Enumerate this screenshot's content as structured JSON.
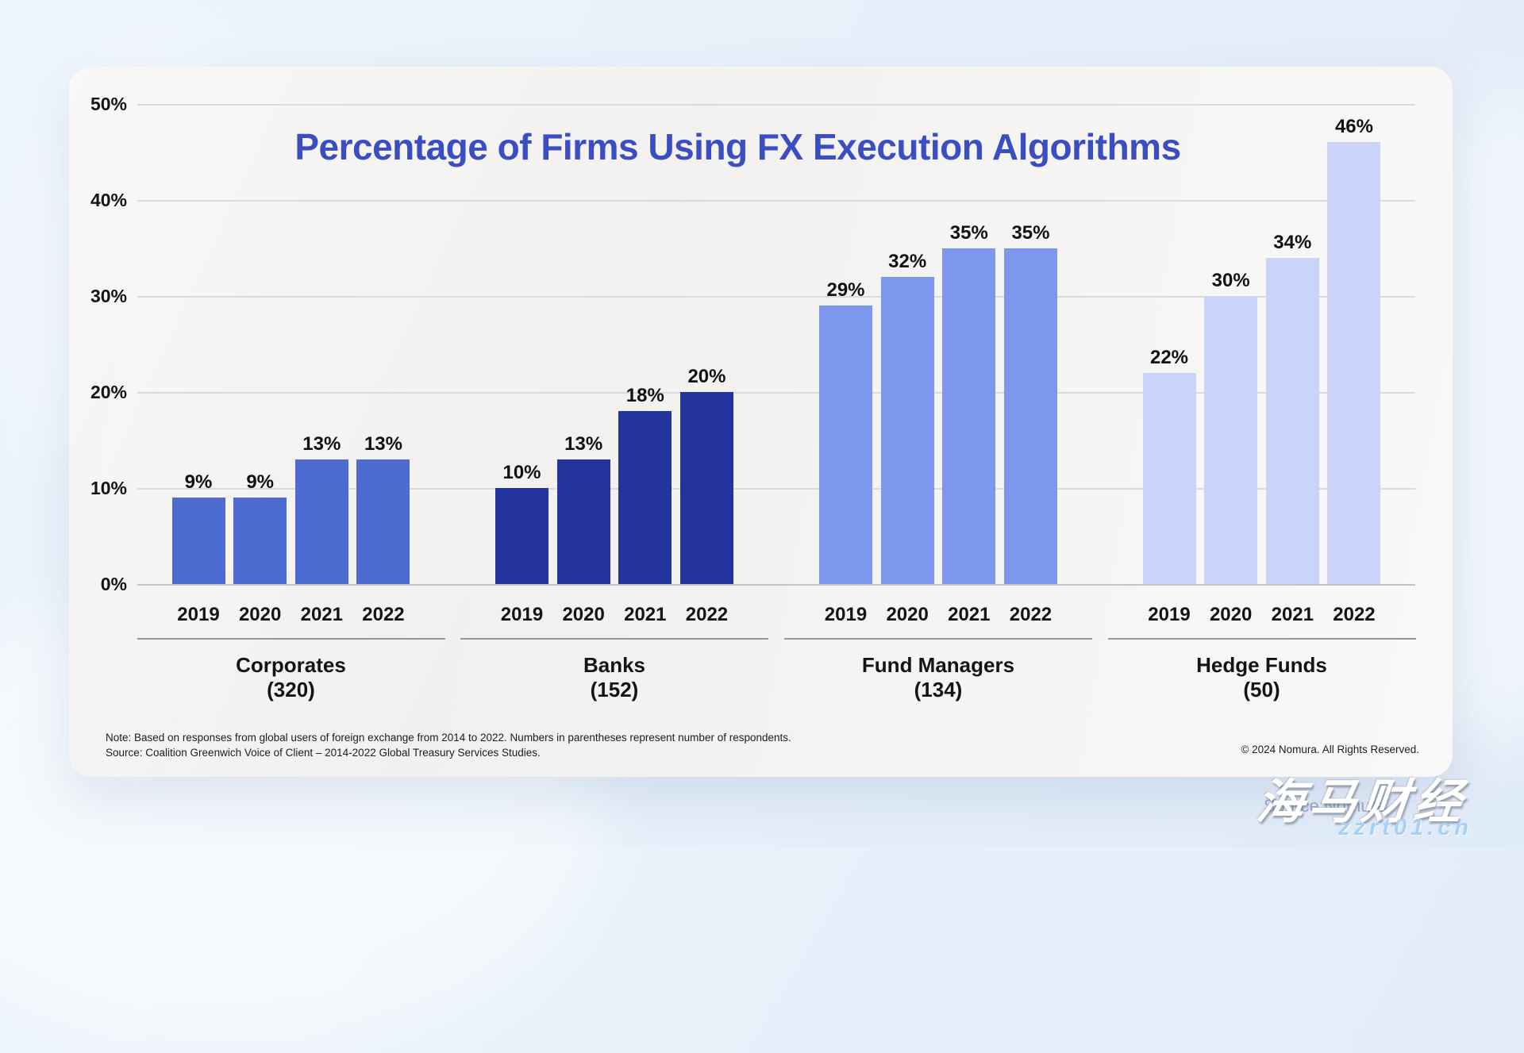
{
  "chart_data": {
    "type": "bar",
    "title": "Percentage of Firms Using FX Execution Algorithms",
    "title_color": "#3a4ec1",
    "ylim": [
      0,
      50
    ],
    "grid": true,
    "legend": "none",
    "y_axis": [
      {
        "label": "50%",
        "value": 50
      },
      {
        "label": "40%",
        "value": 40
      },
      {
        "label": "30%",
        "value": 30
      },
      {
        "label": "20%",
        "value": 20
      },
      {
        "label": "10%",
        "value": 10
      },
      {
        "label": "0%",
        "value": 0
      }
    ],
    "categories": [
      "2019",
      "2020",
      "2021",
      "2022"
    ],
    "groups": [
      {
        "name": "Corporates",
        "respondents_label": "(320)",
        "respondents": 320,
        "color": "#4e6bd2",
        "values": [
          9,
          9,
          13,
          13
        ],
        "labels": [
          "9%",
          "9%",
          "13%",
          "13%"
        ]
      },
      {
        "name": "Banks",
        "respondents_label": "(152)",
        "respondents": 152,
        "color": "#24349d",
        "values": [
          10,
          13,
          18,
          20
        ],
        "labels": [
          "10%",
          "13%",
          "18%",
          "20%"
        ]
      },
      {
        "name": "Fund Managers",
        "respondents_label": "(134)",
        "respondents": 134,
        "color": "#7e97ee",
        "values": [
          29,
          32,
          35,
          35
        ],
        "labels": [
          "29%",
          "32%",
          "35%",
          "35%"
        ]
      },
      {
        "name": "Hedge Funds",
        "respondents_label": "(50)",
        "respondents": 50,
        "color": "#cad4f8",
        "values": [
          22,
          30,
          34,
          46
        ],
        "labels": [
          "22%",
          "30%",
          "34%",
          "46%"
        ]
      }
    ]
  },
  "footnotes": {
    "note": "Note: Based on responses from global users of foreign exchange from 2014 to 2022. Numbers in parentheses represent number of respondents.",
    "source": "Source: Coalition Greenwich Voice of Client – 2014-2022 Global Treasury Services Studies.",
    "copyright": "© 2024 Nomura. All Rights Reserved."
  },
  "watermarks": {
    "source_text": "Source:Nomura",
    "cn_text": "海马财经",
    "url_text": "zzrt01.cn"
  }
}
